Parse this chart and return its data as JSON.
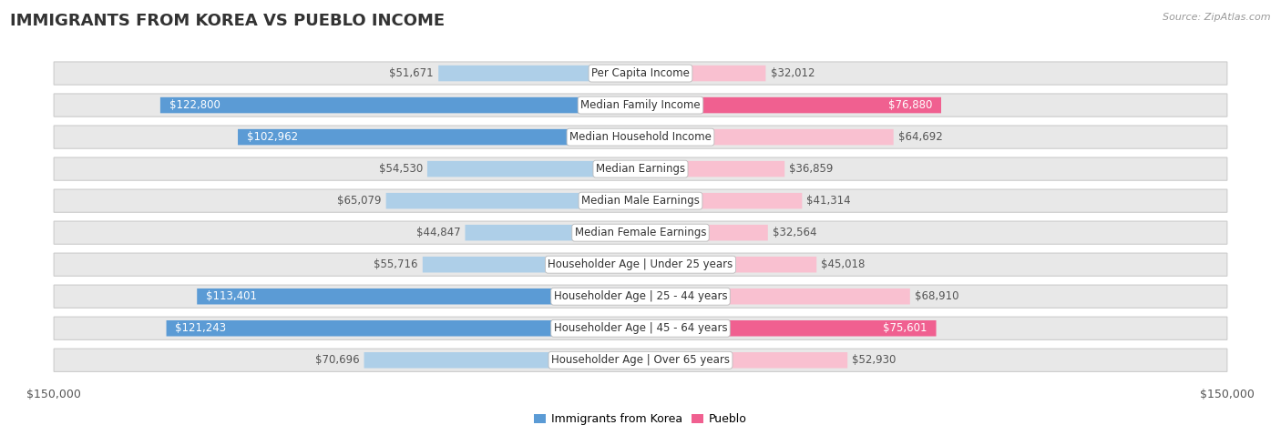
{
  "title": "IMMIGRANTS FROM KOREA VS PUEBLO INCOME",
  "source": "Source: ZipAtlas.com",
  "categories": [
    "Per Capita Income",
    "Median Family Income",
    "Median Household Income",
    "Median Earnings",
    "Median Male Earnings",
    "Median Female Earnings",
    "Householder Age | Under 25 years",
    "Householder Age | 25 - 44 years",
    "Householder Age | 45 - 64 years",
    "Householder Age | Over 65 years"
  ],
  "korea_values": [
    51671,
    122800,
    102962,
    54530,
    65079,
    44847,
    55716,
    113401,
    121243,
    70696
  ],
  "pueblo_values": [
    32012,
    76880,
    64692,
    36859,
    41314,
    32564,
    45018,
    68910,
    75601,
    52930
  ],
  "korea_color_light": "#aecfe8",
  "korea_color_dark": "#5b9bd5",
  "pueblo_color_light": "#f9c0d0",
  "pueblo_color_dark": "#f06090",
  "korea_label": "Immigrants from Korea",
  "pueblo_label": "Pueblo",
  "max_val": 150000,
  "background_color": "#ffffff",
  "row_bg": "#e8e8e8",
  "title_fontsize": 13,
  "value_fontsize": 8.5,
  "label_fontsize": 8.5,
  "axis_label_left": "$150,000",
  "axis_label_right": "$150,000"
}
